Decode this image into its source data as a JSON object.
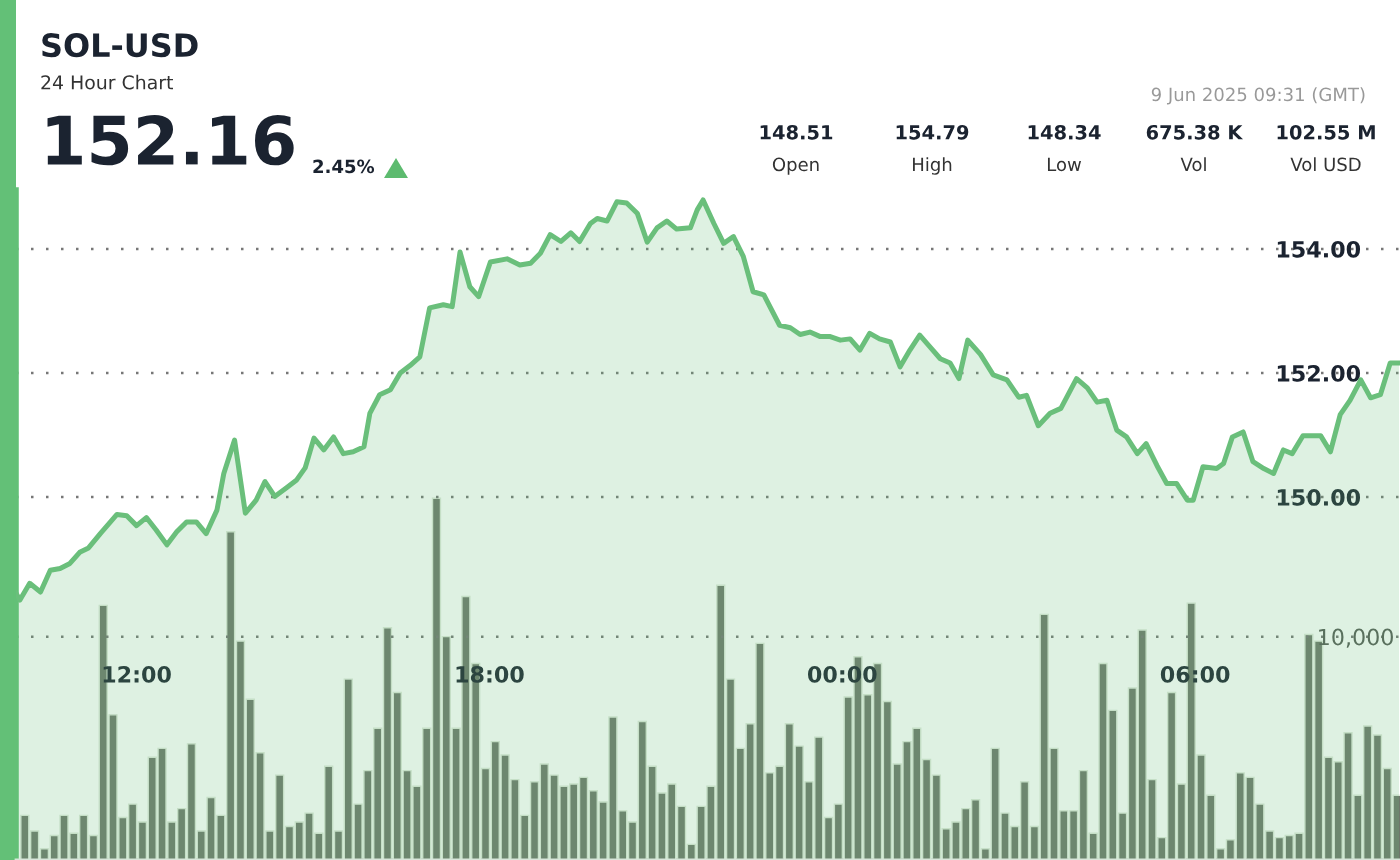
{
  "chart_data": {
    "type": "area",
    "title": "SOL-USD",
    "subtitle": "24 Hour Chart",
    "annotations": [
      "152.16",
      "2.45%",
      "148.51",
      "Open",
      "154.79",
      "High",
      "148.34",
      "Low",
      "675.38 K",
      "Vol",
      "102.55 M",
      "Vol USD",
      "9 Jun 2025 09:31 (GMT)"
    ],
    "xlim": [
      "2025-06-08T09:57",
      "2025-06-09T09:29"
    ],
    "xticks": [
      {
        "value": "2025-06-08T12:00",
        "label": "12:00"
      },
      {
        "value": "2025-06-08T18:00",
        "label": "18:00"
      },
      {
        "value": "2025-06-09T00:00",
        "label": "00:00"
      },
      {
        "value": "2025-06-09T06:00",
        "label": "06:00"
      }
    ],
    "ylim": [
      144.15,
      154.95
    ],
    "yticks": [
      {
        "value": 150,
        "label": "150.00"
      },
      {
        "value": 152,
        "label": "152.00"
      },
      {
        "value": 154,
        "label": "154.00"
      }
    ],
    "y2lim": [
      0,
      30000
    ],
    "y2ticks": [
      {
        "value": 0,
        "label": null
      },
      {
        "value": 10000,
        "label": "10,000"
      }
    ],
    "grid": "y",
    "legend": false,
    "series": [
      {
        "color": "#6abf7b",
        "x": [
          "2025-06-08T09:57",
          "2025-06-08T10:01",
          "2025-06-08T10:11",
          "2025-06-08T10:22",
          "2025-06-08T10:32",
          "2025-06-08T10:42",
          "2025-06-08T10:52",
          "2025-06-08T11:02",
          "2025-06-08T11:11",
          "2025-06-08T11:23",
          "2025-06-08T11:40",
          "2025-06-08T11:50",
          "2025-06-08T12:00",
          "2025-06-08T12:10",
          "2025-06-08T12:20",
          "2025-06-08T12:31",
          "2025-06-08T12:41",
          "2025-06-08T12:51",
          "2025-06-08T13:01",
          "2025-06-08T13:11",
          "2025-06-08T13:22",
          "2025-06-08T13:29",
          "2025-06-08T13:40",
          "2025-06-08T13:51",
          "2025-06-08T14:02",
          "2025-06-08T14:11",
          "2025-06-08T14:21",
          "2025-06-08T14:33",
          "2025-06-08T14:43",
          "2025-06-08T14:52",
          "2025-06-08T15:01",
          "2025-06-08T15:11",
          "2025-06-08T15:21",
          "2025-06-08T15:31",
          "2025-06-08T15:41",
          "2025-06-08T15:52",
          "2025-06-08T15:58",
          "2025-06-08T16:08",
          "2025-06-08T16:19",
          "2025-06-08T16:29",
          "2025-06-08T16:39",
          "2025-06-08T16:49",
          "2025-06-08T16:59",
          "2025-06-08T17:13",
          "2025-06-08T17:22",
          "2025-06-08T17:30",
          "2025-06-08T17:40",
          "2025-06-08T17:49",
          "2025-06-08T18:01",
          "2025-06-08T18:18",
          "2025-06-08T18:31",
          "2025-06-08T18:42",
          "2025-06-08T18:52",
          "2025-06-08T19:02",
          "2025-06-08T19:13",
          "2025-06-08T19:23",
          "2025-06-08T19:32",
          "2025-06-08T19:43",
          "2025-06-08T19:50",
          "2025-06-08T20:00",
          "2025-06-08T20:10",
          "2025-06-08T20:20",
          "2025-06-08T20:31",
          "2025-06-08T20:41",
          "2025-06-08T20:51",
          "2025-06-08T21:01",
          "2025-06-08T21:11",
          "2025-06-08T21:25",
          "2025-06-08T21:32",
          "2025-06-08T21:38",
          "2025-06-08T21:49",
          "2025-06-08T21:59",
          "2025-06-08T22:09",
          "2025-06-08T22:19",
          "2025-06-08T22:29",
          "2025-06-08T22:40",
          "2025-06-08T22:56",
          "2025-06-08T23:07",
          "2025-06-08T23:17",
          "2025-06-08T23:27",
          "2025-06-08T23:37",
          "2025-06-08T23:47",
          "2025-06-08T23:58",
          "2025-06-09T00:08",
          "2025-06-09T00:18",
          "2025-06-09T00:28",
          "2025-06-09T00:38",
          "2025-06-09T00:49",
          "2025-06-09T00:59",
          "2025-06-09T01:09",
          "2025-06-09T01:19",
          "2025-06-09T01:29",
          "2025-06-09T01:40",
          "2025-06-09T01:50",
          "2025-06-09T01:59",
          "2025-06-09T02:08",
          "2025-06-09T02:21",
          "2025-06-09T02:34",
          "2025-06-09T02:48",
          "2025-06-09T03:00",
          "2025-06-09T03:08",
          "2025-06-09T03:20",
          "2025-06-09T03:32",
          "2025-06-09T03:43",
          "2025-06-09T03:59",
          "2025-06-09T04:10",
          "2025-06-09T04:20",
          "2025-06-09T04:30",
          "2025-06-09T04:40",
          "2025-06-09T04:50",
          "2025-06-09T05:01",
          "2025-06-09T05:10",
          "2025-06-09T05:21",
          "2025-06-09T05:31",
          "2025-06-09T05:41",
          "2025-06-09T05:52",
          "2025-06-09T05:58",
          "2025-06-09T06:08",
          "2025-06-09T06:22",
          "2025-06-09T06:29",
          "2025-06-09T06:38",
          "2025-06-09T06:49",
          "2025-06-09T06:59",
          "2025-06-09T07:10",
          "2025-06-09T07:20",
          "2025-06-09T07:30",
          "2025-06-09T07:39",
          "2025-06-09T07:50",
          "2025-06-09T08:08",
          "2025-06-09T08:18",
          "2025-06-09T08:28",
          "2025-06-09T08:38",
          "2025-06-09T08:49",
          "2025-06-09T08:59",
          "2025-06-09T09:09",
          "2025-06-09T09:19",
          "2025-06-09T09:28"
        ],
        "values": [
          148.45,
          148.34,
          148.61,
          148.47,
          148.82,
          148.85,
          148.93,
          149.11,
          149.18,
          149.41,
          149.72,
          149.7,
          149.54,
          149.67,
          149.47,
          149.23,
          149.44,
          149.6,
          149.6,
          149.41,
          149.79,
          150.38,
          150.92,
          149.74,
          149.95,
          150.25,
          150.01,
          150.15,
          150.27,
          150.47,
          150.95,
          150.76,
          150.97,
          150.7,
          150.73,
          150.81,
          151.35,
          151.65,
          151.73,
          152.0,
          152.12,
          152.26,
          153.05,
          153.1,
          153.07,
          153.95,
          153.39,
          153.23,
          153.79,
          153.84,
          153.74,
          153.77,
          153.93,
          154.23,
          154.12,
          154.26,
          154.12,
          154.41,
          154.49,
          154.45,
          154.76,
          154.74,
          154.57,
          154.11,
          154.34,
          154.45,
          154.32,
          154.34,
          154.63,
          154.79,
          154.41,
          154.09,
          154.2,
          153.88,
          153.31,
          153.26,
          152.77,
          152.73,
          152.62,
          152.66,
          152.59,
          152.59,
          152.53,
          152.55,
          152.37,
          152.64,
          152.55,
          152.5,
          152.1,
          152.37,
          152.61,
          152.43,
          152.23,
          152.16,
          151.91,
          152.53,
          152.3,
          151.97,
          151.89,
          151.61,
          151.64,
          151.15,
          151.35,
          151.43,
          151.91,
          151.76,
          151.53,
          151.56,
          151.08,
          150.97,
          150.7,
          150.86,
          150.51,
          150.22,
          150.22,
          149.95,
          149.95,
          150.49,
          150.46,
          150.54,
          150.97,
          151.05,
          150.57,
          150.46,
          150.38,
          150.76,
          150.7,
          150.99,
          150.99,
          150.73,
          151.33,
          151.56,
          151.89,
          151.6,
          151.65,
          152.16,
          152.16
        ]
      },
      {
        "type": "bar",
        "axis": "y2",
        "color": "#6f786c",
        "x": [
          "2025-06-08T10:06",
          "2025-06-08T10:16",
          "2025-06-08T10:26",
          "2025-06-08T10:36",
          "2025-06-08T10:46",
          "2025-06-08T10:56",
          "2025-06-08T11:06",
          "2025-06-08T11:16",
          "2025-06-08T11:26",
          "2025-06-08T11:36",
          "2025-06-08T11:46",
          "2025-06-08T11:56",
          "2025-06-08T12:06",
          "2025-06-08T12:16",
          "2025-06-08T12:26",
          "2025-06-08T12:36",
          "2025-06-08T12:46",
          "2025-06-08T12:56",
          "2025-06-08T13:06",
          "2025-06-08T13:16",
          "2025-06-08T13:26",
          "2025-06-08T13:36",
          "2025-06-08T13:46",
          "2025-06-08T13:56",
          "2025-06-08T14:06",
          "2025-06-08T14:16",
          "2025-06-08T14:26",
          "2025-06-08T14:36",
          "2025-06-08T14:46",
          "2025-06-08T14:56",
          "2025-06-08T15:06",
          "2025-06-08T15:16",
          "2025-06-08T15:26",
          "2025-06-08T15:36",
          "2025-06-08T15:46",
          "2025-06-08T15:56",
          "2025-06-08T16:06",
          "2025-06-08T16:16",
          "2025-06-08T16:26",
          "2025-06-08T16:36",
          "2025-06-08T16:46",
          "2025-06-08T16:56",
          "2025-06-08T17:06",
          "2025-06-08T17:16",
          "2025-06-08T17:26",
          "2025-06-08T17:36",
          "2025-06-08T17:46",
          "2025-06-08T17:56",
          "2025-06-08T18:06",
          "2025-06-08T18:16",
          "2025-06-08T18:26",
          "2025-06-08T18:36",
          "2025-06-08T18:46",
          "2025-06-08T18:56",
          "2025-06-08T19:06",
          "2025-06-08T19:16",
          "2025-06-08T19:26",
          "2025-06-08T19:36",
          "2025-06-08T19:46",
          "2025-06-08T19:56",
          "2025-06-08T20:06",
          "2025-06-08T20:16",
          "2025-06-08T20:26",
          "2025-06-08T20:36",
          "2025-06-08T20:46",
          "2025-06-08T20:56",
          "2025-06-08T21:06",
          "2025-06-08T21:16",
          "2025-06-08T21:26",
          "2025-06-08T21:36",
          "2025-06-08T21:46",
          "2025-06-08T21:56",
          "2025-06-08T22:06",
          "2025-06-08T22:16",
          "2025-06-08T22:26",
          "2025-06-08T22:36",
          "2025-06-08T22:46",
          "2025-06-08T22:56",
          "2025-06-08T23:06",
          "2025-06-08T23:16",
          "2025-06-08T23:26",
          "2025-06-08T23:36",
          "2025-06-08T23:46",
          "2025-06-08T23:56",
          "2025-06-09T00:06",
          "2025-06-09T00:16",
          "2025-06-09T00:26",
          "2025-06-09T00:36",
          "2025-06-09T00:46",
          "2025-06-09T00:56",
          "2025-06-09T01:06",
          "2025-06-09T01:16",
          "2025-06-09T01:26",
          "2025-06-09T01:36",
          "2025-06-09T01:46",
          "2025-06-09T01:56",
          "2025-06-09T02:06",
          "2025-06-09T02:16",
          "2025-06-09T02:26",
          "2025-06-09T02:36",
          "2025-06-09T02:46",
          "2025-06-09T02:56",
          "2025-06-09T03:06",
          "2025-06-09T03:16",
          "2025-06-09T03:26",
          "2025-06-09T03:36",
          "2025-06-09T03:46",
          "2025-06-09T03:56",
          "2025-06-09T04:06",
          "2025-06-09T04:16",
          "2025-06-09T04:26",
          "2025-06-09T04:36",
          "2025-06-09T04:46",
          "2025-06-09T04:56",
          "2025-06-09T05:06",
          "2025-06-09T05:16",
          "2025-06-09T05:26",
          "2025-06-09T05:36",
          "2025-06-09T05:46",
          "2025-06-09T05:56",
          "2025-06-09T06:06",
          "2025-06-09T06:16",
          "2025-06-09T06:26",
          "2025-06-09T06:36",
          "2025-06-09T06:46",
          "2025-06-09T06:56",
          "2025-06-09T07:06",
          "2025-06-09T07:16",
          "2025-06-09T07:26",
          "2025-06-09T07:36",
          "2025-06-09T07:46",
          "2025-06-09T07:56",
          "2025-06-09T08:06",
          "2025-06-09T08:16",
          "2025-06-09T08:26",
          "2025-06-09T08:36",
          "2025-06-09T08:46",
          "2025-06-09T08:56",
          "2025-06-09T09:06",
          "2025-06-09T09:16",
          "2025-06-09T09:26"
        ],
        "values": [
          2000,
          1300,
          500,
          1100,
          2000,
          1200,
          2000,
          1100,
          11400,
          6500,
          1900,
          2500,
          1700,
          4600,
          5000,
          1700,
          2300,
          5200,
          1300,
          2800,
          2000,
          14700,
          9800,
          7200,
          4800,
          1300,
          3800,
          1500,
          1700,
          2100,
          1200,
          4200,
          1300,
          8100,
          2500,
          4000,
          5900,
          10400,
          7500,
          4000,
          3300,
          5900,
          16200,
          10000,
          5900,
          11800,
          8800,
          4100,
          5300,
          4700,
          3600,
          2000,
          3500,
          4300,
          3800,
          3300,
          3400,
          3700,
          3100,
          2600,
          6400,
          2200,
          1700,
          6200,
          4200,
          3000,
          3400,
          2400,
          700,
          2400,
          3300,
          12300,
          8100,
          5000,
          6100,
          9700,
          3900,
          4200,
          6100,
          5100,
          3500,
          5500,
          1900,
          2500,
          7300,
          9100,
          7400,
          8800,
          7100,
          4300,
          5300,
          5900,
          4500,
          3800,
          1400,
          1700,
          2300,
          2700,
          500,
          5000,
          2100,
          1500,
          3500,
          1500,
          11000,
          5000,
          2200,
          2200,
          4000,
          1200,
          8800,
          6700,
          2100,
          7700,
          10300,
          3600,
          1000,
          7500,
          3400,
          11500,
          4700,
          2900,
          500,
          900,
          3900,
          3700,
          2500,
          1300,
          1000,
          1100,
          1200,
          10100,
          9800,
          4600,
          4400,
          5700,
          2900,
          6000,
          5600,
          4100,
          2900
        ]
      }
    ]
  }
}
